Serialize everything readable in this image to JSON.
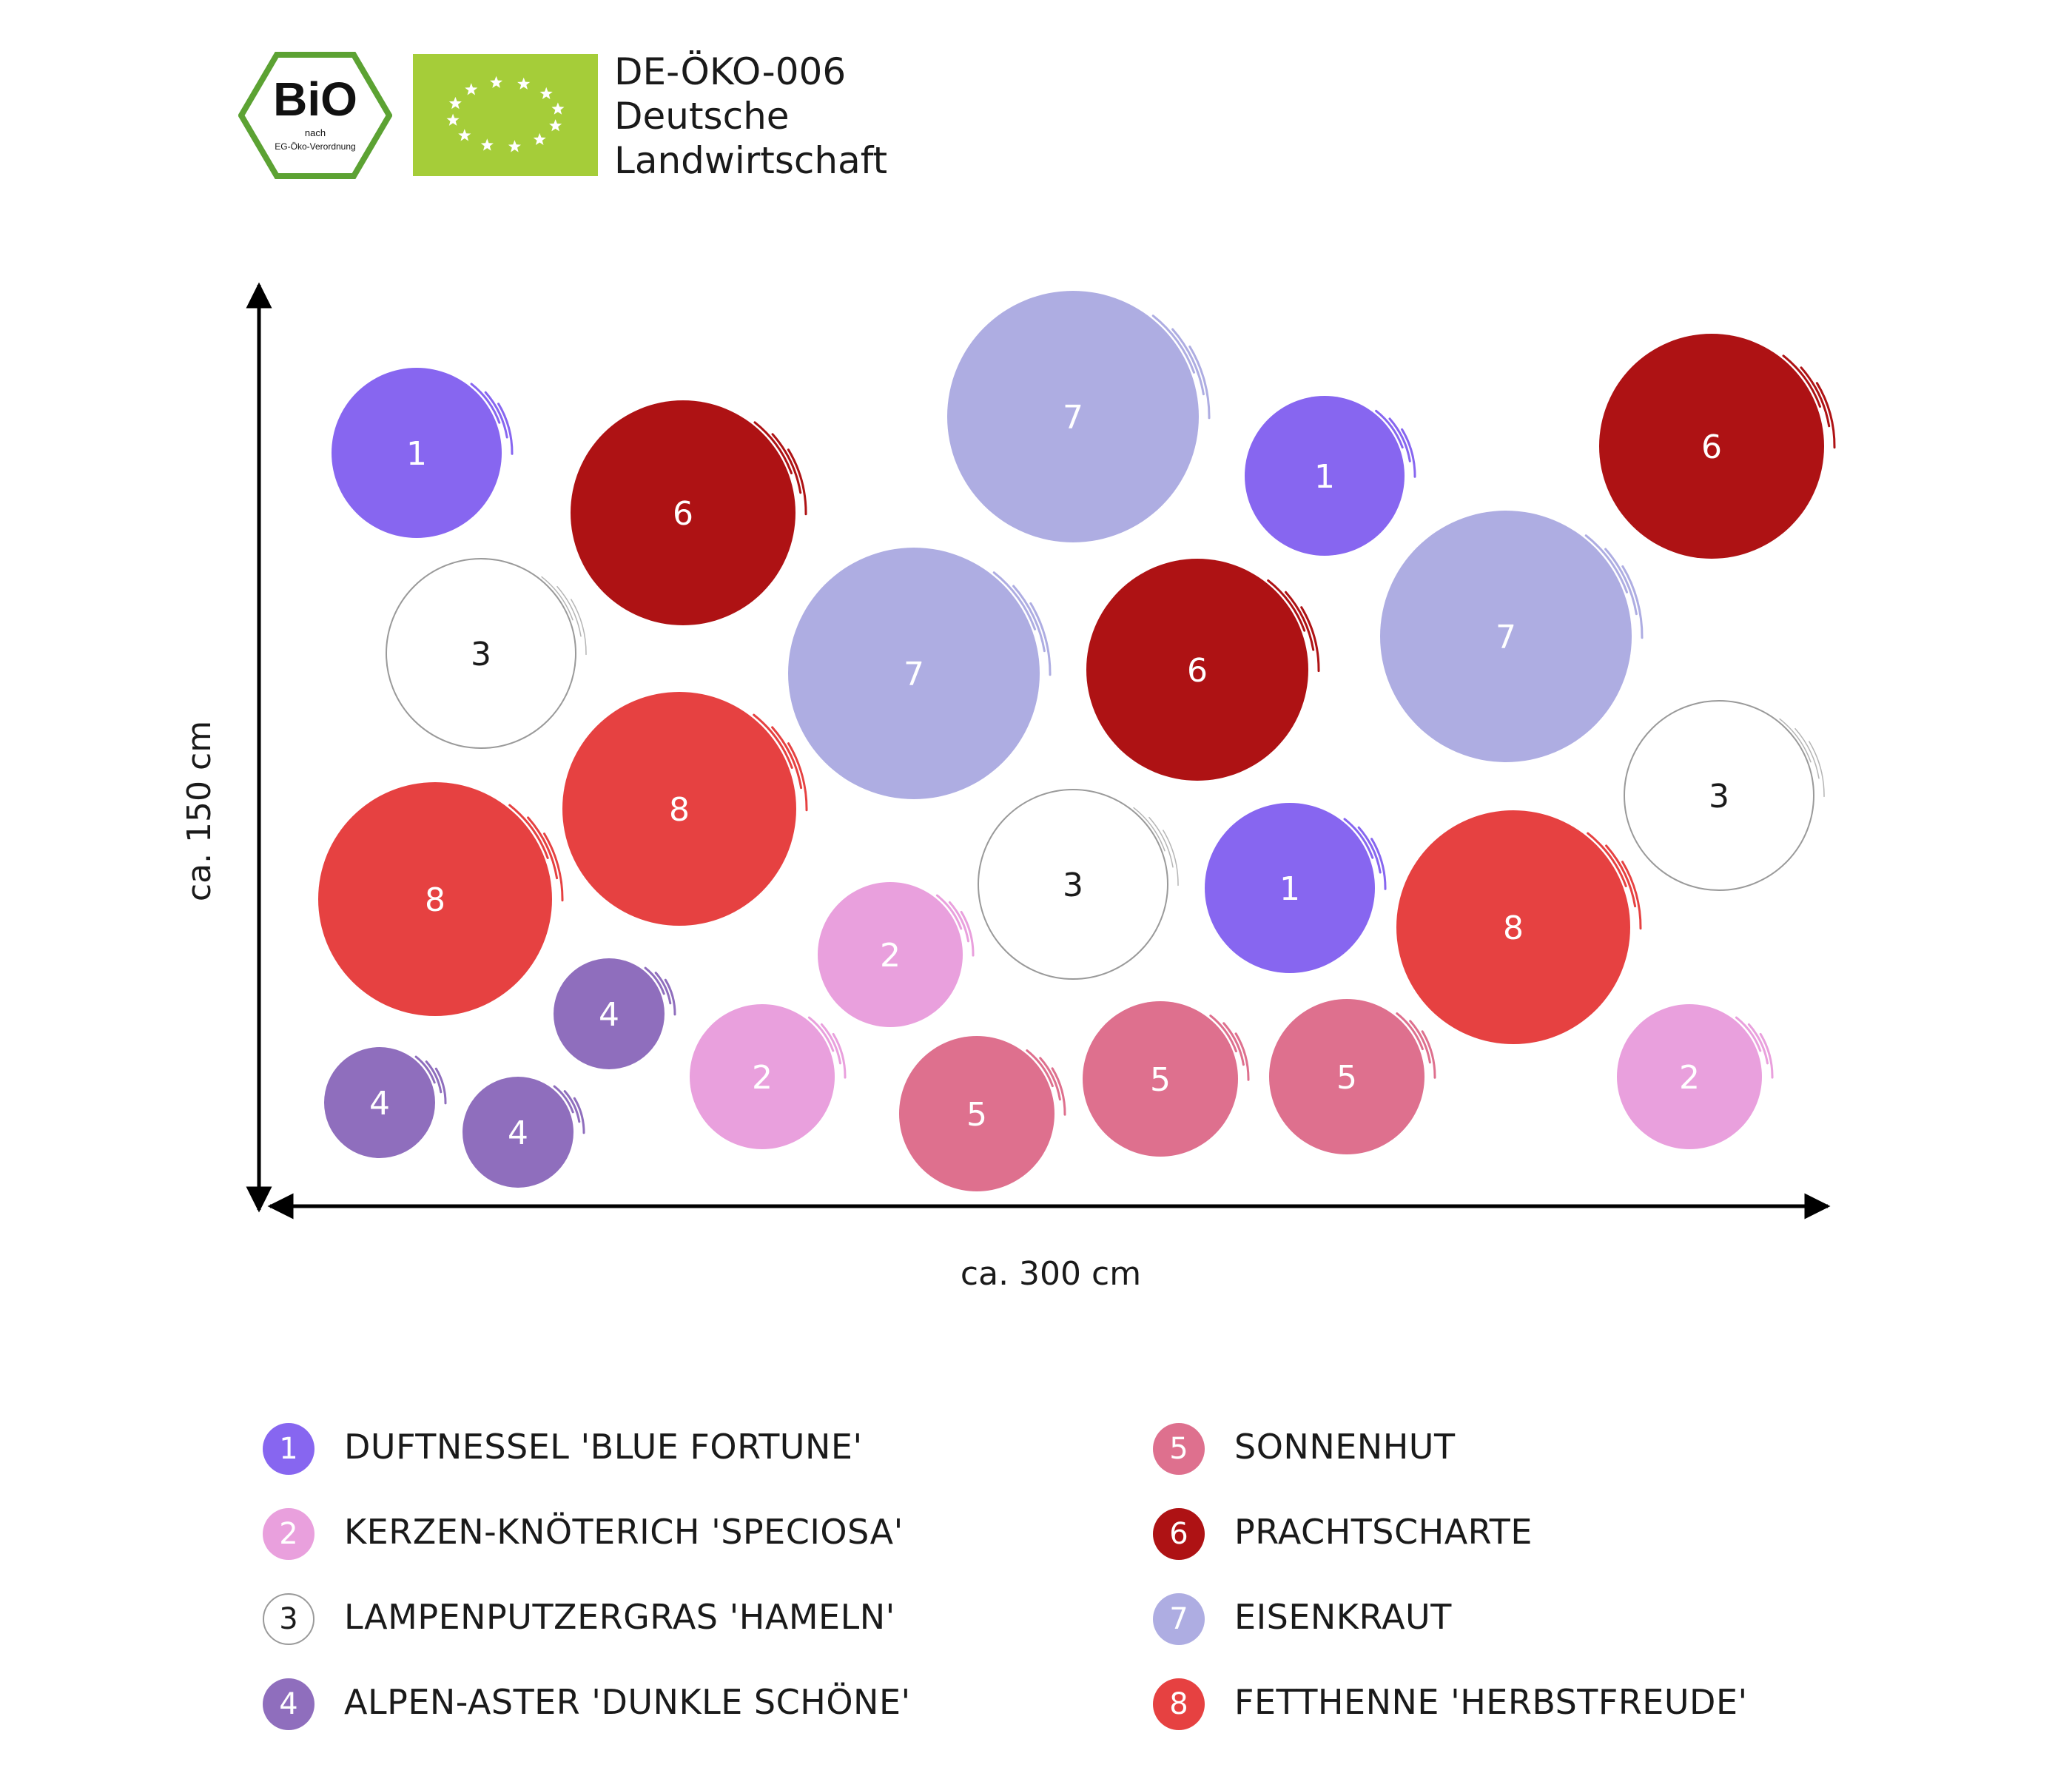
{
  "header": {
    "bio_seal": {
      "title": "BiO",
      "line1": "nach",
      "line2": "EG-Öko-Verordnung",
      "colors": {
        "border": "#5ca233",
        "text": "#111111"
      }
    },
    "eu_leaf": {
      "color": "#a5cd39",
      "star_color": "#ffffff"
    },
    "cert_code": "DE-ÖKO-006",
    "cert_line1": "Deutsche",
    "cert_line2": "Landwirtschaft"
  },
  "dimensions": {
    "width_label": "ca. 300 cm",
    "height_label": "ca. 150 cm"
  },
  "plants": [
    {
      "id": 1,
      "number": "1",
      "name": "DUFTNESSEL 'BLUE FORTUNE'",
      "color": "#8766f0",
      "text_color": "#ffffff",
      "outline": false
    },
    {
      "id": 2,
      "number": "2",
      "name": "KERZEN-KNÖTERICH 'SPECIOSA'",
      "color": "#e9a0dd",
      "text_color": "#ffffff",
      "outline": false
    },
    {
      "id": 3,
      "number": "3",
      "name": "LAMPENPUTZERGRAS 'HAMELN'",
      "color": "#ffffff",
      "text_color": "#1a1a1a",
      "outline": true
    },
    {
      "id": 4,
      "number": "4",
      "name": "ALPEN-ASTER 'DUNKLE SCHÖNE'",
      "color": "#8f6ebd",
      "text_color": "#ffffff",
      "outline": false
    },
    {
      "id": 5,
      "number": "5",
      "name": "SONNENHUT",
      "color": "#de708e",
      "text_color": "#ffffff",
      "outline": false
    },
    {
      "id": 6,
      "number": "6",
      "name": "PRACHTSCHARTE",
      "color": "#ae1214",
      "text_color": "#ffffff",
      "outline": false
    },
    {
      "id": 7,
      "number": "7",
      "name": "EISENKRAUT",
      "color": "#aeade2",
      "text_color": "#ffffff",
      "outline": false
    },
    {
      "id": 8,
      "number": "8",
      "name": "FETTHENNE 'HERBSTFREUDE'",
      "color": "#e64141",
      "text_color": "#ffffff",
      "outline": false
    }
  ],
  "layout_sequence": [
    "1",
    "6",
    "7",
    "1",
    "6",
    "3",
    "7",
    "6",
    "7",
    "8",
    "8",
    "3",
    "1",
    "8",
    "3",
    "2",
    "4",
    "2",
    "4",
    "4",
    "5",
    "5",
    "5",
    "2"
  ]
}
